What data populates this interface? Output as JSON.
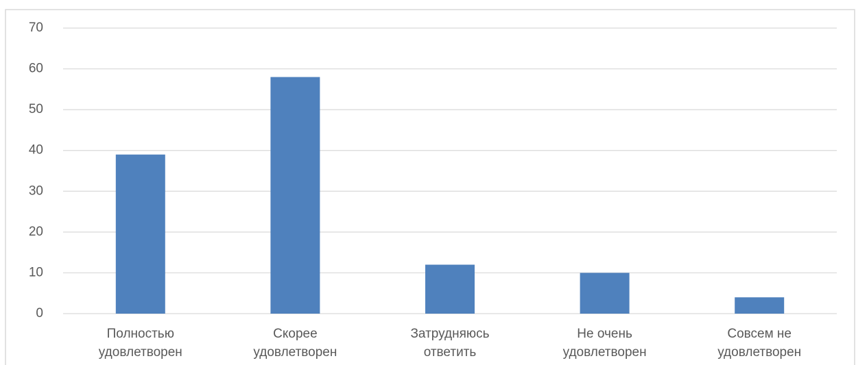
{
  "chart_data": {
    "type": "bar",
    "categories": [
      "Полностью удовлетворен",
      "Скорее удовлетворен",
      "Затрудняюсь ответить",
      "Не очень удовлетворен",
      "Совсем не удовлетворен"
    ],
    "values": [
      39,
      58,
      12,
      10,
      4
    ],
    "color": "#4f81bd",
    "ylim": [
      0,
      70
    ],
    "yticks": [
      0,
      10,
      20,
      30,
      40,
      50,
      60,
      70
    ],
    "grid": true
  }
}
